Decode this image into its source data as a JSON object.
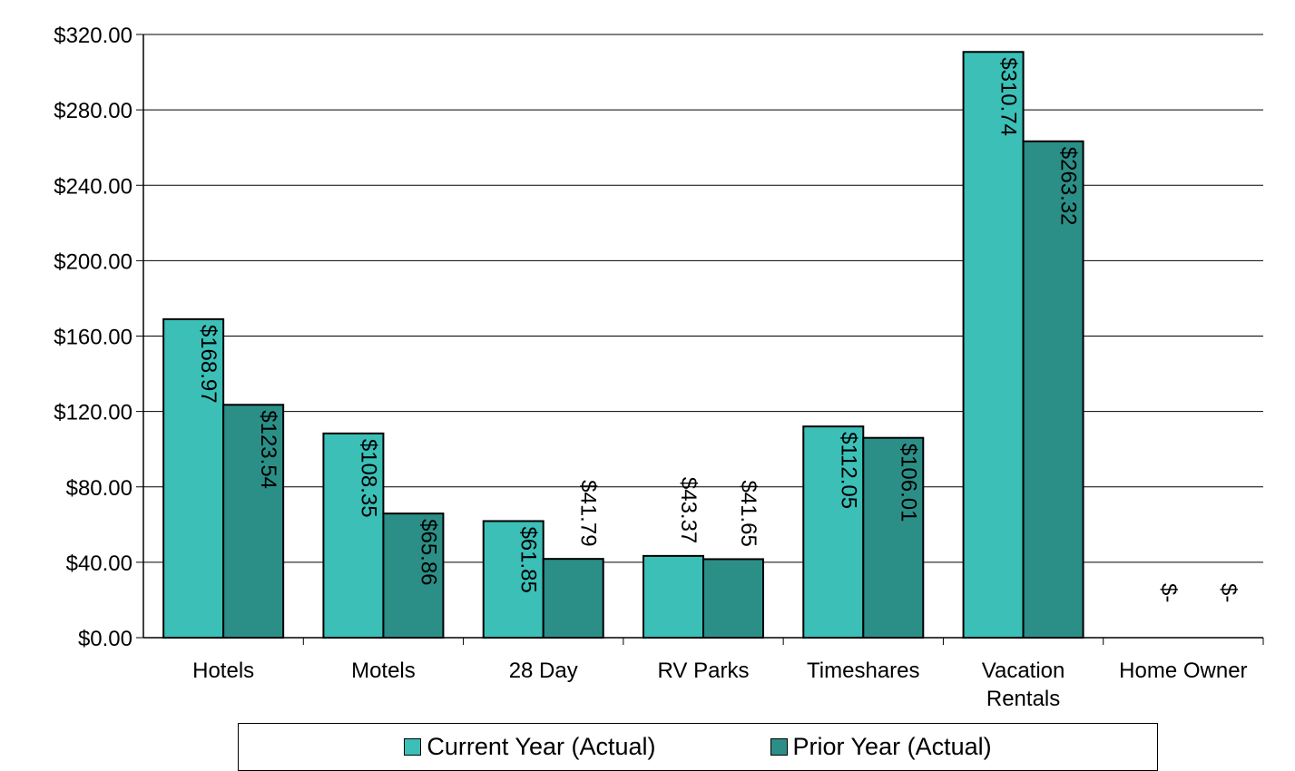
{
  "chart_data": {
    "type": "bar",
    "title": "",
    "xlabel": "",
    "ylabel": "",
    "categories": [
      [
        "Hotels"
      ],
      [
        "Motels"
      ],
      [
        "28 Day"
      ],
      [
        "RV Parks"
      ],
      [
        "Timeshares"
      ],
      [
        "Vacation",
        "Rentals"
      ],
      [
        "Home Owner"
      ]
    ],
    "series": [
      {
        "name": "Current Year (Actual)",
        "color": "#3bbfb7",
        "values": [
          168.97,
          108.35,
          61.85,
          43.37,
          112.05,
          310.74,
          0
        ],
        "labels": [
          "$168.97",
          "$108.35",
          "$61.85",
          "$43.37",
          "$112.05",
          "$310.74",
          "$-"
        ]
      },
      {
        "name": "Prior Year (Actual)",
        "color": "#2b8f87",
        "values": [
          123.54,
          65.86,
          41.79,
          41.65,
          106.01,
          263.32,
          0
        ],
        "labels": [
          "$123.54",
          "$65.86",
          "$41.79",
          "$41.65",
          "$106.01",
          "$263.32",
          "$-"
        ]
      }
    ],
    "ylim": [
      0,
      320
    ],
    "yticks": [
      0,
      40,
      80,
      120,
      160,
      200,
      240,
      280,
      320
    ],
    "ytick_labels": [
      "$0.00",
      "$40.00",
      "$80.00",
      "$120.00",
      "$160.00",
      "$200.00",
      "$240.00",
      "$280.00",
      "$320.00"
    ],
    "grid": true,
    "legend_position": "bottom"
  }
}
